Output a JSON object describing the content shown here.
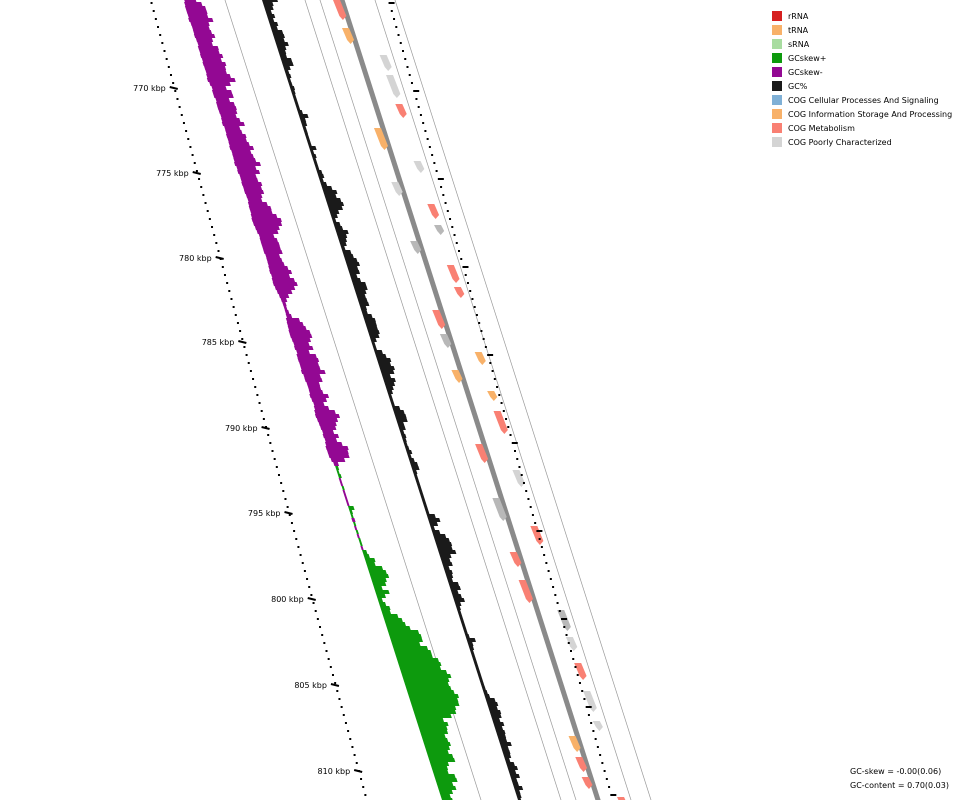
{
  "colors": {
    "rRNA": "#d62020",
    "tRNA": "#f8b169",
    "sRNA": "#a8dca0",
    "gc_skew_pos": "#0d9a0d",
    "gc_skew_neg": "#930893",
    "gc_content": "#1a1a1a",
    "cog_cellular": "#7fb0d6",
    "cog_info": "#f8b169",
    "cog_metabolism": "#f98073",
    "cog_poorly": "#d4d4d4",
    "backbone": "#8a8a8a",
    "unclassified": "#b8b8b8"
  },
  "legend": [
    {
      "label": "rRNA",
      "color": "#d62020"
    },
    {
      "label": "tRNA",
      "color": "#f8b169"
    },
    {
      "label": "sRNA",
      "color": "#a8dca0"
    },
    {
      "label": "GCskew+",
      "color": "#0d9a0d"
    },
    {
      "label": "GCskew-",
      "color": "#930893"
    },
    {
      "label": "GC%",
      "color": "#1a1a1a"
    },
    {
      "label": "COG Cellular Processes And Signaling",
      "color": "#7fb0d6"
    },
    {
      "label": "COG Information Storage And Processing",
      "color": "#f8b169"
    },
    {
      "label": "COG Metabolism",
      "color": "#f98073"
    },
    {
      "label": "COG Poorly Characterized",
      "color": "#d4d4d4"
    }
  ],
  "ruler": {
    "ticks": [
      {
        "label": "770 kbp",
        "kbp": 770
      },
      {
        "label": "775 kbp",
        "kbp": 775
      },
      {
        "label": "780 kbp",
        "kbp": 780
      },
      {
        "label": "785 kbp",
        "kbp": 785
      },
      {
        "label": "790 kbp",
        "kbp": 790
      },
      {
        "label": "795 kbp",
        "kbp": 795
      },
      {
        "label": "800 kbp",
        "kbp": 800
      },
      {
        "label": "805 kbp",
        "kbp": 805
      },
      {
        "label": "810 kbp",
        "kbp": 810
      }
    ]
  },
  "stats": {
    "gc_skew": "GC-skew = -0.00(0.06)",
    "gc_content": "GC-content = 0.70(0.03)"
  }
}
